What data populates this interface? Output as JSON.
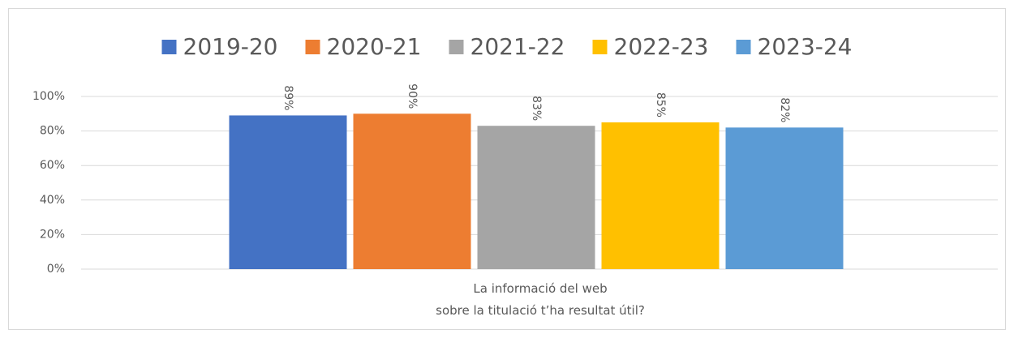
{
  "chart_data": {
    "type": "bar",
    "categories": [
      "La informació del web\nsobre la titulació t’ha resultat útil?"
    ],
    "series": [
      {
        "name": "2019-20",
        "color": "#4472c4",
        "values": [
          89
        ],
        "value_labels": [
          "89%"
        ]
      },
      {
        "name": "2020-21",
        "color": "#ed7d31",
        "values": [
          90
        ],
        "value_labels": [
          "90%"
        ]
      },
      {
        "name": "2021-22",
        "color": "#a5a5a5",
        "values": [
          83
        ],
        "value_labels": [
          "83%"
        ]
      },
      {
        "name": "2022-23",
        "color": "#ffc000",
        "values": [
          85
        ],
        "value_labels": [
          "85%"
        ]
      },
      {
        "name": "2023-24",
        "color": "#5b9bd5",
        "values": [
          82
        ],
        "value_labels": [
          "82%"
        ]
      }
    ],
    "ylim": [
      0,
      100
    ],
    "yticks": [
      {
        "value": 0,
        "label": "0%"
      },
      {
        "value": 20,
        "label": "20%"
      },
      {
        "value": 40,
        "label": "40%"
      },
      {
        "value": 60,
        "label": "60%"
      },
      {
        "value": 80,
        "label": "80%"
      },
      {
        "value": 100,
        "label": "100%"
      }
    ],
    "grid": true,
    "legend": "top"
  }
}
